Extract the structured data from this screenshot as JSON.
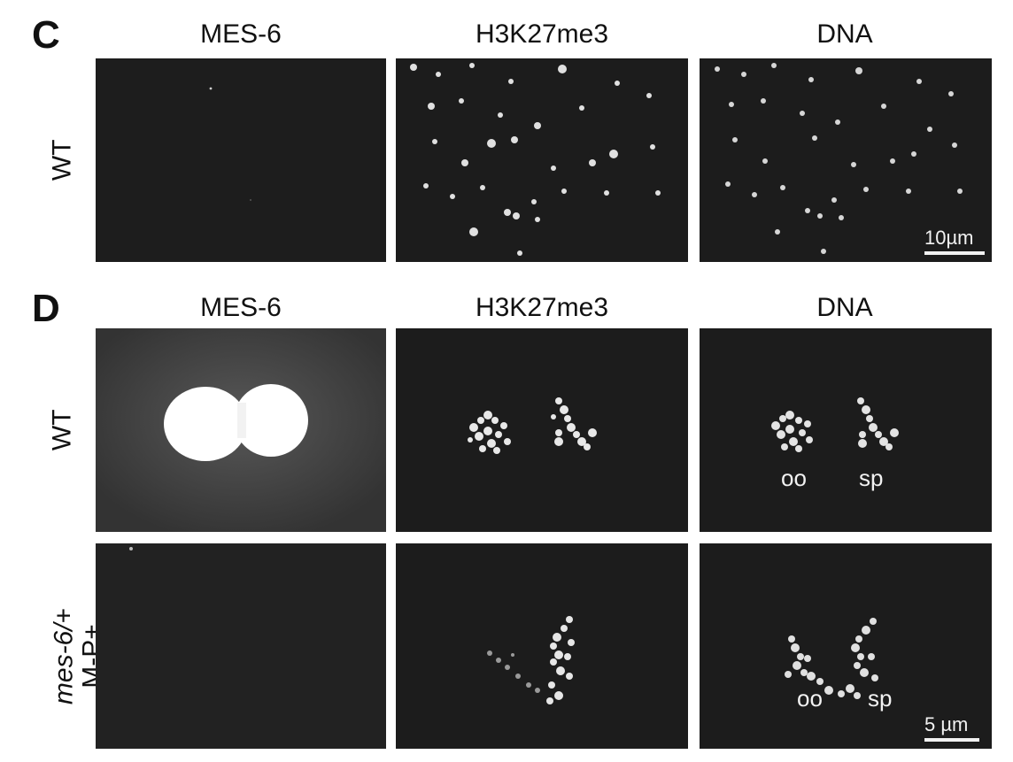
{
  "panel_c": {
    "letter": "C",
    "columns": [
      "MES-6",
      "H3K27me3",
      "DNA"
    ],
    "row_label": "WT",
    "scale_bar": "10µm"
  },
  "panel_d": {
    "letter": "D",
    "columns": [
      "MES-6",
      "H3K27me3",
      "DNA"
    ],
    "rows": [
      {
        "label_lines": [
          "WT"
        ]
      },
      {
        "label_italic": "mes-6/",
        "label_plain": "+",
        "label_line2": "M-P+"
      }
    ],
    "labels": {
      "oocyte": "oo",
      "sperm": "sp"
    },
    "scale_bar": "5 µm"
  }
}
